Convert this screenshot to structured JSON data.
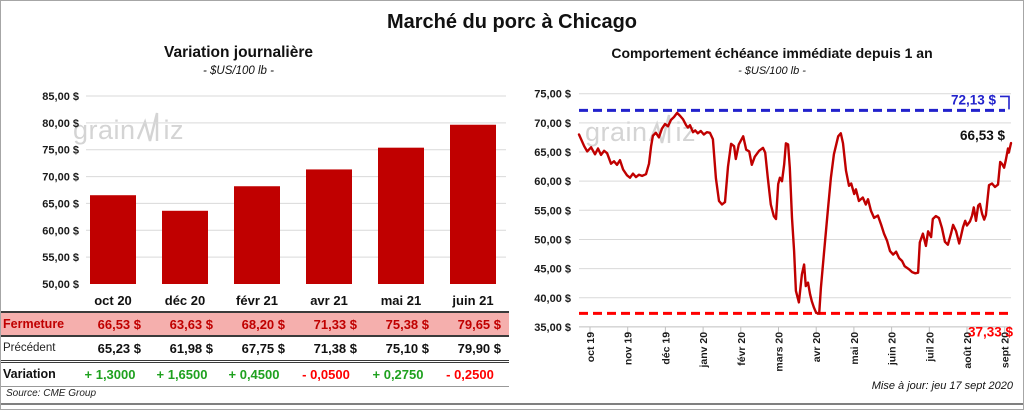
{
  "header": {
    "title": "Marché du porc à Chicago"
  },
  "watermark": {
    "part1": "grain",
    "part2": "iz"
  },
  "left_chart": {
    "title": "Variation journalière",
    "subtitle": "- $US/100 lb -"
  },
  "right_chart": {
    "title": "Comportement échéance immédiate depuis 1 an",
    "subtitle": "- $US/100 lb -"
  },
  "table": {
    "columns": [
      "oct 20",
      "déc 20",
      "févr 21",
      "avr 21",
      "mai 21",
      "juin 21"
    ],
    "fermeture": {
      "label": "Fermeture",
      "values": [
        "66,53 $",
        "63,63 $",
        "68,20 $",
        "71,33 $",
        "75,38 $",
        "79,65 $"
      ]
    },
    "precedent": {
      "label": "Précédent",
      "values": [
        "65,23 $",
        "61,98 $",
        "67,75 $",
        "71,38 $",
        "75,10 $",
        "79,90 $"
      ]
    },
    "variation": {
      "label": "Variation",
      "values": [
        "+ 1,3000",
        "+ 1,6500",
        "+ 0,4500",
        "- 0,0500",
        "+ 0,2750",
        "- 0,2500"
      ],
      "classes": [
        "pos",
        "pos",
        "pos",
        "neg",
        "pos",
        "neg"
      ]
    }
  },
  "footer": {
    "source": "Source: CME Group",
    "updated": "Mise à jour: jeu 17 sept 2020"
  },
  "colors": {
    "bar": "#c00000",
    "line": "#c00000",
    "grid": "#d9d9d9",
    "axis": "#bfbfbf",
    "dash_high": "#2222cc",
    "dash_low": "#ff0000",
    "label_high": "#2222cc",
    "label_last": "#111111",
    "label_low": "#ff0000",
    "positive": "#1fa11f",
    "negative": "#ff0000",
    "fermeture_bg": "#f5afad",
    "fermeture_text": "#c00000"
  },
  "chart_data": [
    {
      "type": "bar",
      "title": "Variation journalière",
      "subtitle": "- $US/100 lb -",
      "categories": [
        "oct 20",
        "déc 20",
        "févr 21",
        "avr 21",
        "mai 21",
        "juin 21"
      ],
      "values": [
        66.53,
        63.63,
        68.2,
        71.33,
        75.38,
        79.65
      ],
      "ylim": [
        50,
        85
      ],
      "yticks": [
        85,
        80,
        75,
        70,
        65,
        60,
        55,
        50
      ],
      "ytick_labels": [
        "85,00 $",
        "80,00 $",
        "75,00 $",
        "70,00 $",
        "65,00 $",
        "60,00 $",
        "55,00 $",
        "50,00 $"
      ],
      "grid": true,
      "legend": "none",
      "bar_color": "#c00000"
    },
    {
      "type": "line",
      "title": "Comportement échéance immédiate depuis 1 an",
      "subtitle": "- $US/100 lb -",
      "x_ticks": [
        "oct 19",
        "nov 19",
        "déc 19",
        "janv 20",
        "févr 20",
        "mars 20",
        "avr 20",
        "mai 20",
        "juin 20",
        "juil 20",
        "août 20",
        "sept 20"
      ],
      "ylim": [
        35,
        75
      ],
      "yticks": [
        75,
        70,
        65,
        60,
        55,
        50,
        45,
        40,
        35
      ],
      "ytick_labels": [
        "75,00 $",
        "70,00 $",
        "65,00 $",
        "60,00 $",
        "55,00 $",
        "50,00 $",
        "45,00 $",
        "40,00 $",
        "35,00 $"
      ],
      "grid": true,
      "annotations": {
        "high": {
          "value": 72.13,
          "label": "72,13 $",
          "style": "dashed"
        },
        "last": {
          "value": 66.53,
          "label": "66,53 $"
        },
        "low": {
          "value": 37.33,
          "label": "37,33 $",
          "style": "dashed"
        }
      },
      "series": [
        [
          0.0,
          68.0
        ],
        [
          0.012,
          66.0
        ],
        [
          0.019,
          65.1
        ],
        [
          0.028,
          65.8
        ],
        [
          0.037,
          64.6
        ],
        [
          0.044,
          65.6
        ],
        [
          0.051,
          64.5
        ],
        [
          0.058,
          65.2
        ],
        [
          0.065,
          64.8
        ],
        [
          0.074,
          63.0
        ],
        [
          0.081,
          63.4
        ],
        [
          0.088,
          62.8
        ],
        [
          0.095,
          63.6
        ],
        [
          0.102,
          62.0
        ],
        [
          0.111,
          61.0
        ],
        [
          0.118,
          60.6
        ],
        [
          0.125,
          61.3
        ],
        [
          0.132,
          60.7
        ],
        [
          0.139,
          61.1
        ],
        [
          0.146,
          60.9
        ],
        [
          0.155,
          61.2
        ],
        [
          0.162,
          63.0
        ],
        [
          0.167,
          66.0
        ],
        [
          0.171,
          67.8
        ],
        [
          0.178,
          68.3
        ],
        [
          0.185,
          67.5
        ],
        [
          0.192,
          69.0
        ],
        [
          0.199,
          69.8
        ],
        [
          0.206,
          69.4
        ],
        [
          0.213,
          70.5
        ],
        [
          0.22,
          71.0
        ],
        [
          0.227,
          71.7
        ],
        [
          0.234,
          71.2
        ],
        [
          0.241,
          70.6
        ],
        [
          0.248,
          69.6
        ],
        [
          0.252,
          69.2
        ],
        [
          0.257,
          69.6
        ],
        [
          0.264,
          68.4
        ],
        [
          0.269,
          68.7
        ],
        [
          0.275,
          68.2
        ],
        [
          0.282,
          68.6
        ],
        [
          0.289,
          68.0
        ],
        [
          0.296,
          68.4
        ],
        [
          0.303,
          68.3
        ],
        [
          0.31,
          67.2
        ],
        [
          0.317,
          60.5
        ],
        [
          0.324,
          56.6
        ],
        [
          0.331,
          56.0
        ],
        [
          0.338,
          56.4
        ],
        [
          0.345,
          62.5
        ],
        [
          0.352,
          66.4
        ],
        [
          0.359,
          66.0
        ],
        [
          0.363,
          63.8
        ],
        [
          0.37,
          66.3
        ],
        [
          0.38,
          67.7
        ],
        [
          0.387,
          65.4
        ],
        [
          0.394,
          65.1
        ],
        [
          0.4,
          62.8
        ],
        [
          0.407,
          64.2
        ],
        [
          0.417,
          65.2
        ],
        [
          0.426,
          65.7
        ],
        [
          0.431,
          64.9
        ],
        [
          0.437,
          60.6
        ],
        [
          0.444,
          56.0
        ],
        [
          0.451,
          54.0
        ],
        [
          0.456,
          53.5
        ],
        [
          0.461,
          59.5
        ],
        [
          0.465,
          60.6
        ],
        [
          0.47,
          60.0
        ],
        [
          0.475,
          62.9
        ],
        [
          0.479,
          66.5
        ],
        [
          0.484,
          66.3
        ],
        [
          0.488,
          62.3
        ],
        [
          0.493,
          53.7
        ],
        [
          0.498,
          48.0
        ],
        [
          0.502,
          41.2
        ],
        [
          0.509,
          39.2
        ],
        [
          0.516,
          44.0
        ],
        [
          0.521,
          45.7
        ],
        [
          0.525,
          42.0
        ],
        [
          0.53,
          42.6
        ],
        [
          0.535,
          40.6
        ],
        [
          0.539,
          39.4
        ],
        [
          0.544,
          38.3
        ],
        [
          0.549,
          37.4
        ],
        [
          0.556,
          37.3
        ],
        [
          0.56,
          41.7
        ],
        [
          0.567,
          47.5
        ],
        [
          0.576,
          54.9
        ],
        [
          0.583,
          60.6
        ],
        [
          0.59,
          64.6
        ],
        [
          0.6,
          67.7
        ],
        [
          0.606,
          68.2
        ],
        [
          0.611,
          66.5
        ],
        [
          0.618,
          61.8
        ],
        [
          0.625,
          59.2
        ],
        [
          0.63,
          59.6
        ],
        [
          0.637,
          57.8
        ],
        [
          0.641,
          58.6
        ],
        [
          0.648,
          56.6
        ],
        [
          0.657,
          57.2
        ],
        [
          0.664,
          56.0
        ],
        [
          0.669,
          56.9
        ],
        [
          0.676,
          54.9
        ],
        [
          0.683,
          53.7
        ],
        [
          0.692,
          54.1
        ],
        [
          0.699,
          52.6
        ],
        [
          0.706,
          51.0
        ],
        [
          0.713,
          49.8
        ],
        [
          0.72,
          48.0
        ],
        [
          0.727,
          47.4
        ],
        [
          0.734,
          47.9
        ],
        [
          0.741,
          46.8
        ],
        [
          0.748,
          46.3
        ],
        [
          0.754,
          45.4
        ],
        [
          0.764,
          44.9
        ],
        [
          0.771,
          44.4
        ],
        [
          0.778,
          44.2
        ],
        [
          0.785,
          44.3
        ],
        [
          0.789,
          49.5
        ],
        [
          0.796,
          51.0
        ],
        [
          0.803,
          48.9
        ],
        [
          0.808,
          51.4
        ],
        [
          0.815,
          50.4
        ],
        [
          0.819,
          53.5
        ],
        [
          0.826,
          54.0
        ],
        [
          0.833,
          53.7
        ],
        [
          0.84,
          52.0
        ],
        [
          0.847,
          49.6
        ],
        [
          0.854,
          49.1
        ],
        [
          0.861,
          51.0
        ],
        [
          0.866,
          52.5
        ],
        [
          0.873,
          51.4
        ],
        [
          0.88,
          49.3
        ],
        [
          0.884,
          50.5
        ],
        [
          0.889,
          52.1
        ],
        [
          0.894,
          53.2
        ],
        [
          0.898,
          52.4
        ],
        [
          0.905,
          53.1
        ],
        [
          0.91,
          54.1
        ],
        [
          0.914,
          55.5
        ],
        [
          0.919,
          53.2
        ],
        [
          0.924,
          55.8
        ],
        [
          0.928,
          56.1
        ],
        [
          0.933,
          54.4
        ],
        [
          0.938,
          53.4
        ],
        [
          0.942,
          54.2
        ],
        [
          0.949,
          59.3
        ],
        [
          0.956,
          59.6
        ],
        [
          0.963,
          59.0
        ],
        [
          0.97,
          59.4
        ],
        [
          0.975,
          63.3
        ],
        [
          0.979,
          63.0
        ],
        [
          0.984,
          62.3
        ],
        [
          0.988,
          63.6
        ],
        [
          0.993,
          65.6
        ],
        [
          0.995,
          64.9
        ],
        [
          1.0,
          66.53
        ]
      ]
    }
  ]
}
